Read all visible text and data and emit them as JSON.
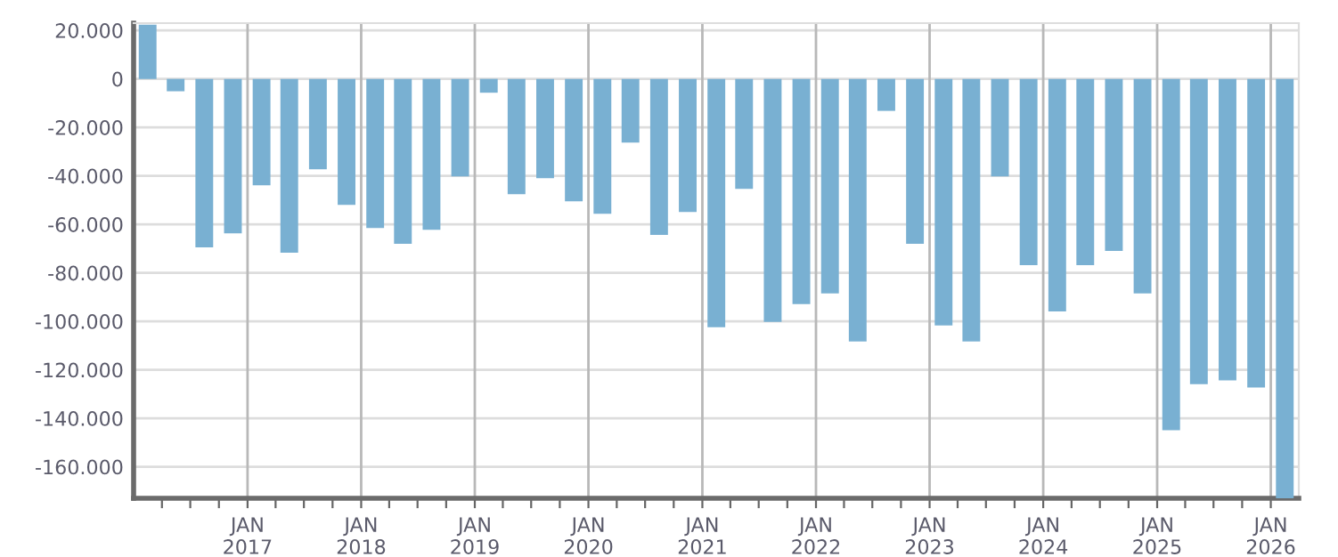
{
  "chart_data": {
    "type": "bar",
    "x": [
      "2016-02-15",
      "2016-05-15",
      "2016-08-15",
      "2016-11-15",
      "2017-02-15",
      "2017-05-15",
      "2017-08-15",
      "2017-11-15",
      "2018-02-15",
      "2018-05-15",
      "2018-08-15",
      "2018-11-15",
      "2019-02-15",
      "2019-05-15",
      "2019-08-15",
      "2019-11-15",
      "2020-02-15",
      "2020-05-15",
      "2020-08-15",
      "2020-11-15",
      "2021-02-15",
      "2021-05-15",
      "2021-08-15",
      "2021-11-15",
      "2022-02-15",
      "2022-05-15",
      "2022-08-15",
      "2022-11-15",
      "2023-02-15",
      "2023-05-15",
      "2023-08-15",
      "2023-11-15",
      "2024-02-15",
      "2024-05-15",
      "2024-08-15",
      "2024-11-15",
      "2025-02-15",
      "2025-05-15",
      "2025-08-15",
      "2025-11-15",
      "2026-02-15"
    ],
    "values": [
      22400,
      -5100,
      -69500,
      -63700,
      -43900,
      -71700,
      -37300,
      -52000,
      -61500,
      -68000,
      -62200,
      -40200,
      -5700,
      -47600,
      -41000,
      -50500,
      -55600,
      -26300,
      -64400,
      -54900,
      -102400,
      -45400,
      -100200,
      -92900,
      -88500,
      -108300,
      -13200,
      -68000,
      -101700,
      -108300,
      -40200,
      -76800,
      -95900,
      -76800,
      -71000,
      -88500,
      -144900,
      -125900,
      -124400,
      -127300,
      -173000
    ],
    "color": "#79b0d2",
    "ylim": [
      -173000,
      23000
    ],
    "yticks": [
      {
        "value": 20000,
        "label": "20.000"
      },
      0,
      {
        "value": -20000,
        "label": "-20.000"
      },
      {
        "value": -40000,
        "label": "-40.000"
      },
      {
        "value": -60000,
        "label": "-60.000"
      },
      {
        "value": -80000,
        "label": "-80.000"
      },
      {
        "value": -100000,
        "label": "-100.000"
      },
      {
        "value": -120000,
        "label": "-120.000"
      },
      {
        "value": -140000,
        "label": "-140.000"
      },
      {
        "value": -160000,
        "label": "-160.000"
      }
    ],
    "xlim": [
      "2016-01-01",
      "2026-04-01"
    ],
    "xticks": [
      {
        "value": "2016-04-01",
        "label": null
      },
      {
        "value": "2016-07-01",
        "label": null
      },
      {
        "value": "2016-10-01",
        "label": null
      },
      {
        "value": "2017-01-01",
        "label": "JAN\n2017"
      },
      {
        "value": "2017-04-01",
        "label": null
      },
      {
        "value": "2017-07-01",
        "label": null
      },
      {
        "value": "2017-10-01",
        "label": null
      },
      {
        "value": "2018-01-01",
        "label": "JAN\n2018"
      },
      {
        "value": "2018-04-01",
        "label": null
      },
      {
        "value": "2018-07-01",
        "label": null
      },
      {
        "value": "2018-10-01",
        "label": null
      },
      {
        "value": "2019-01-01",
        "label": "JAN\n2019"
      },
      {
        "value": "2019-04-01",
        "label": null
      },
      {
        "value": "2019-07-01",
        "label": null
      },
      {
        "value": "2019-10-01",
        "label": null
      },
      {
        "value": "2020-01-01",
        "label": "JAN\n2020"
      },
      {
        "value": "2020-04-01",
        "label": null
      },
      {
        "value": "2020-07-01",
        "label": null
      },
      {
        "value": "2020-10-01",
        "label": null
      },
      {
        "value": "2021-01-01",
        "label": "JAN\n2021"
      },
      {
        "value": "2021-04-01",
        "label": null
      },
      {
        "value": "2021-07-01",
        "label": null
      },
      {
        "value": "2021-10-01",
        "label": null
      },
      {
        "value": "2022-01-01",
        "label": "JAN\n2022"
      },
      {
        "value": "2022-04-01",
        "label": null
      },
      {
        "value": "2022-07-01",
        "label": null
      },
      {
        "value": "2022-10-01",
        "label": null
      },
      {
        "value": "2023-01-01",
        "label": "JAN\n2023"
      },
      {
        "value": "2023-04-01",
        "label": null
      },
      {
        "value": "2023-07-01",
        "label": null
      },
      {
        "value": "2023-10-01",
        "label": null
      },
      {
        "value": "2024-01-01",
        "label": "JAN\n2024"
      },
      {
        "value": "2024-04-01",
        "label": null
      },
      {
        "value": "2024-07-01",
        "label": null
      },
      {
        "value": "2024-10-01",
        "label": null
      },
      {
        "value": "2025-01-01",
        "label": "JAN\n2025"
      },
      {
        "value": "2025-04-01",
        "label": null
      },
      {
        "value": "2025-07-01",
        "label": null
      },
      {
        "value": "2025-10-01",
        "label": null
      },
      {
        "value": "2026-01-01",
        "label": "JAN\n2026"
      }
    ],
    "grid": true
  }
}
